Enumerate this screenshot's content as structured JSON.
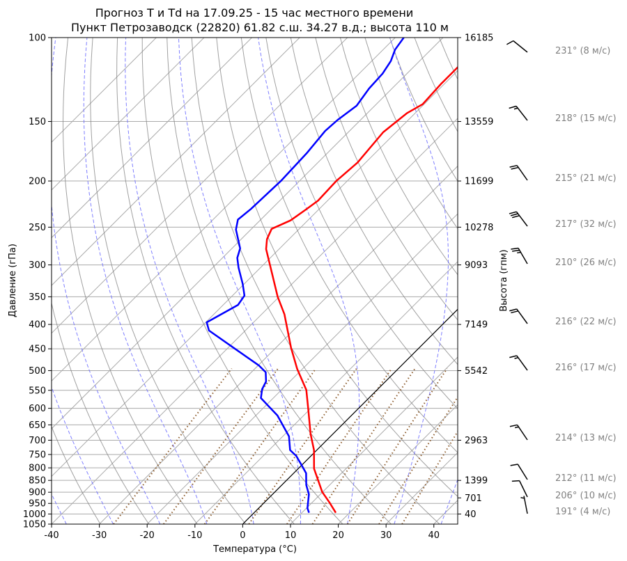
{
  "chart_data": {
    "type": "line",
    "subtype": "skew-T log-p diagram",
    "title": "Прогноз T и Td на 17.09.25 - 15 час местного времени",
    "subtitle": "Пункт Петрозаводск (22820) 61.82 с.ш. 34.27 в.д.; высота 110 м",
    "xlabel": "Температура (°C)",
    "ylabel": "Давление (гПа)",
    "ylabel_right": "Высота (гпм)",
    "xlim": [
      -40,
      45
    ],
    "ylim": [
      1050,
      100
    ],
    "y_scale": "log",
    "x_ticks": [
      -40,
      -30,
      -20,
      -10,
      0,
      10,
      20,
      30,
      40
    ],
    "y_ticks": [
      100,
      150,
      200,
      250,
      300,
      350,
      400,
      450,
      500,
      550,
      600,
      650,
      700,
      750,
      800,
      850,
      900,
      950,
      1000,
      1050
    ],
    "height_ticks": [
      {
        "p": 100,
        "label": "16185"
      },
      {
        "p": 150,
        "label": "13559"
      },
      {
        "p": 200,
        "label": "11699"
      },
      {
        "p": 250,
        "label": "10278"
      },
      {
        "p": 300,
        "label": "9093"
      },
      {
        "p": 400,
        "label": "7149"
      },
      {
        "p": 500,
        "label": "5542"
      },
      {
        "p": 700,
        "label": "2963"
      },
      {
        "p": 850,
        "label": "1399"
      },
      {
        "p": 925,
        "label": "701"
      },
      {
        "p": 1000,
        "label": "40"
      }
    ],
    "grid": true,
    "series": [
      {
        "key": "T",
        "color": "#ff0000",
        "p": [
          994,
          948,
          899,
          803,
          734,
          679,
          607,
          549,
          496,
          448,
          381,
          350,
          278,
          265,
          252,
          242,
          230,
          220,
          200,
          183,
          158,
          144,
          138,
          125,
          115,
          100
        ],
        "t": [
          17.1,
          13.8,
          9.9,
          3.3,
          -0.6,
          -4.7,
          -10.0,
          -14.8,
          -21.1,
          -26.8,
          -35.2,
          -40.3,
          -52.7,
          -54.6,
          -55.8,
          -53.6,
          -52.7,
          -52.0,
          -52.3,
          -51.7,
          -52.7,
          -51.7,
          -50.3,
          -50.7,
          -50.7,
          -49.5
        ]
      },
      {
        "key": "Td",
        "color": "#0000ff",
        "p": [
          994,
          972,
          909,
          869,
          821,
          790,
          755,
          734,
          687,
          621,
          571,
          547,
          527,
          504,
          488,
          448,
          412,
          396,
          364,
          348,
          329,
          304,
          290,
          277,
          253,
          241,
          229,
          200,
          175,
          157,
          149,
          139,
          128,
          119,
          112,
          106,
          100
        ],
        "t": [
          11.5,
          10.2,
          7.6,
          5.1,
          2.6,
          0.0,
          -3.1,
          -5.6,
          -8.7,
          -15.5,
          -22.6,
          -24.2,
          -25.0,
          -27.0,
          -29.8,
          -38.8,
          -47.6,
          -49.8,
          -46.9,
          -47.5,
          -50.3,
          -54.6,
          -56.9,
          -58.3,
          -63.1,
          -64.8,
          -64.3,
          -63.9,
          -64.3,
          -65.1,
          -64.8,
          -63.8,
          -64.8,
          -65.1,
          -66.0,
          -67.5,
          -68.2
        ]
      }
    ],
    "reference_lines": {
      "isotherm_0C": {
        "color": "#000000"
      },
      "dry_adiabats": {
        "color": "#808080"
      },
      "moist_adiabats": {
        "color": "#6f6fff"
      },
      "mixing_ratio": {
        "color": "#8b5a2b",
        "values_g_per_kg": [
          0.4,
          1,
          2,
          4,
          7,
          10,
          16,
          24,
          32
        ]
      }
    },
    "wind": [
      {
        "p": 100,
        "dir": 231,
        "speed": 8,
        "label": "231° (8 м/с)"
      },
      {
        "p": 150,
        "dir": 218,
        "speed": 15,
        "label": "218° (15 м/с)"
      },
      {
        "p": 200,
        "dir": 215,
        "speed": 21,
        "label": "215° (21 м/с)"
      },
      {
        "p": 250,
        "dir": 217,
        "speed": 32,
        "label": "217° (32 м/с)"
      },
      {
        "p": 300,
        "dir": 210,
        "speed": 26,
        "label": "210° (26 м/с)"
      },
      {
        "p": 400,
        "dir": 216,
        "speed": 22,
        "label": "216° (22 м/с)"
      },
      {
        "p": 500,
        "dir": 216,
        "speed": 17,
        "label": "216° (17 м/с)"
      },
      {
        "p": 700,
        "dir": 214,
        "speed": 13,
        "label": "214° (13 м/с)"
      },
      {
        "p": 850,
        "dir": 212,
        "speed": 11,
        "label": "212° (11 м/с)"
      },
      {
        "p": 925,
        "dir": 206,
        "speed": 10,
        "label": "206° (10 м/с)"
      },
      {
        "p": 1000,
        "dir": 191,
        "speed": 4,
        "label": "191° (4 м/с)"
      }
    ]
  }
}
